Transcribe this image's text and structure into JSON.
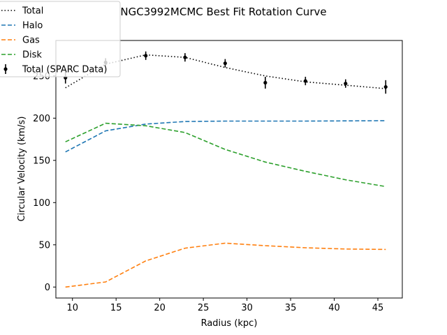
{
  "chart_data": {
    "type": "line",
    "title": "NGC3992MCMC Best Fit Rotation Curve",
    "xlabel": "Radius (kpc)",
    "ylabel": "Circular Velocity (km/s)",
    "xlim": [
      8.1,
      47.8
    ],
    "ylim": [
      -13,
      292
    ],
    "xticks": [
      10,
      15,
      20,
      25,
      30,
      35,
      40,
      45
    ],
    "yticks": [
      0,
      50,
      100,
      150,
      200,
      250
    ],
    "legend_position": "top-left",
    "grid": false,
    "series": [
      {
        "name": "Total",
        "style": "dotted",
        "color": "#000000",
        "x": [
          9.2,
          13.8,
          18.4,
          22.9,
          27.5,
          32.1,
          36.7,
          41.3,
          45.9
        ],
        "y": [
          236,
          264,
          275,
          272,
          260,
          250,
          243,
          239,
          235
        ]
      },
      {
        "name": "Halo",
        "style": "dashed",
        "color": "#1f77b4",
        "x": [
          9.2,
          13.8,
          18.4,
          22.9,
          27.5,
          32.1,
          36.7,
          41.3,
          45.9
        ],
        "y": [
          160,
          185,
          193,
          196,
          196.5,
          196.5,
          196.5,
          196.8,
          197
        ]
      },
      {
        "name": "Gas",
        "style": "dashed",
        "color": "#ff7f0e",
        "x": [
          9.2,
          13.8,
          18.4,
          22.9,
          27.5,
          32.1,
          36.7,
          41.3,
          45.9
        ],
        "y": [
          0,
          6,
          31,
          46,
          52,
          49,
          46.5,
          45,
          44.5
        ]
      },
      {
        "name": "Disk",
        "style": "dashed",
        "color": "#2ca02c",
        "x": [
          9.2,
          13.8,
          18.4,
          22.9,
          27.5,
          32.1,
          36.7,
          41.3,
          45.9
        ],
        "y": [
          172,
          194,
          191,
          183,
          163,
          148,
          137,
          127,
          119
        ]
      },
      {
        "name": "Total (SPARC Data)",
        "style": "errorbar",
        "color": "#000000",
        "x": [
          9.2,
          13.8,
          18.4,
          22.9,
          27.5,
          32.1,
          36.7,
          41.3,
          45.9
        ],
        "y": [
          248,
          266,
          274,
          272,
          265,
          242,
          244,
          241,
          237
        ],
        "err": [
          7,
          5,
          5,
          5,
          5,
          7,
          5,
          5,
          8
        ]
      }
    ]
  },
  "colors": {
    "axes": "#000000",
    "background": "#ffffff",
    "legend_border": "#cccccc"
  }
}
